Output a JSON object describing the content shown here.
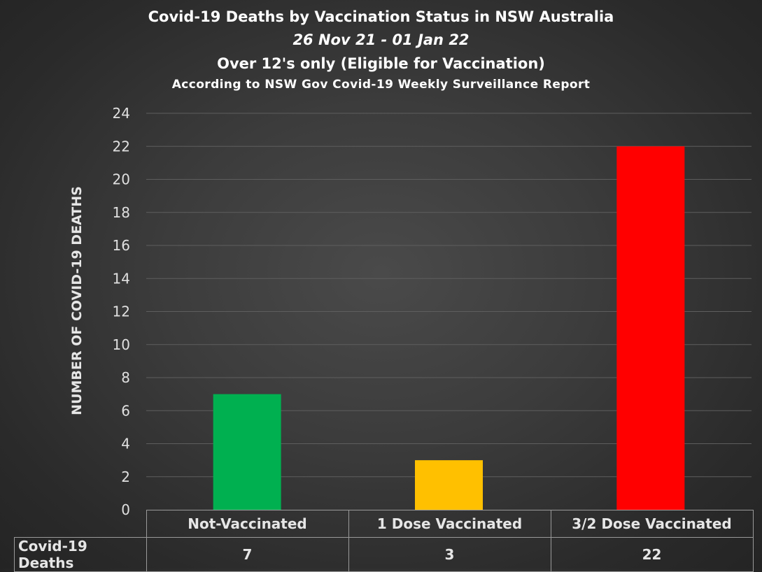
{
  "chart_data": {
    "type": "bar",
    "title": "Covid-19 Deaths by Vaccination Status in NSW Australia",
    "subtitle": "26 Nov 21 - 01 Jan 22",
    "subtitle2": "Over 12's only (Eligible for Vaccination)",
    "subtitle3": "According to NSW Gov Covid-19 Weekly Surveillance Report",
    "ylabel": "NUMBER OF COVID-19 DEATHS",
    "xlabel": "",
    "ylim": [
      0,
      24
    ],
    "yticks": [
      "0",
      "2",
      "4",
      "6",
      "8",
      "10",
      "12",
      "14",
      "16",
      "18",
      "20",
      "22",
      "24"
    ],
    "grid": true,
    "categories": [
      "Not-Vaccinated",
      "1 Dose Vaccinated",
      "3/2 Dose Vaccinated"
    ],
    "series": [
      {
        "name": "Covid-19 Deaths",
        "values": [
          7,
          3,
          22
        ]
      }
    ],
    "data_table": {
      "row_label": "Covid-19 Deaths",
      "values": [
        "7",
        "3",
        "22"
      ]
    },
    "colors": [
      "#00b050",
      "#ffc000",
      "#ff0000"
    ]
  }
}
